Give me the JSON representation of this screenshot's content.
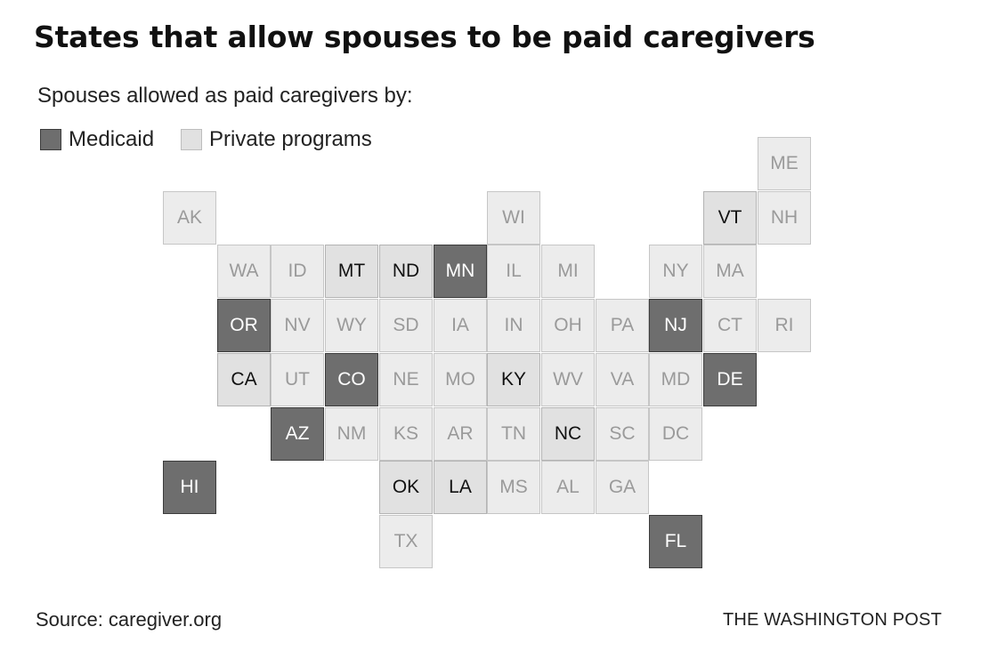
{
  "title": "States that allow spouses to be paid caregivers",
  "subtitle": "Spouses allowed as paid caregivers by:",
  "legend": [
    {
      "key": "medicaid",
      "label": "Medicaid"
    },
    {
      "key": "private",
      "label": "Private programs"
    }
  ],
  "colors": {
    "medicaid": "#6e6e6e",
    "private": "#e1e1e1",
    "none": "#ececec"
  },
  "map_data": {
    "type": "tile-grid",
    "states": [
      {
        "abbr": "ME",
        "col": 11,
        "row": 0,
        "status": "none"
      },
      {
        "abbr": "AK",
        "col": 0,
        "row": 1,
        "status": "none"
      },
      {
        "abbr": "WI",
        "col": 6,
        "row": 1,
        "status": "none"
      },
      {
        "abbr": "VT",
        "col": 10,
        "row": 1,
        "status": "private"
      },
      {
        "abbr": "NH",
        "col": 11,
        "row": 1,
        "status": "none"
      },
      {
        "abbr": "WA",
        "col": 1,
        "row": 2,
        "status": "none"
      },
      {
        "abbr": "ID",
        "col": 2,
        "row": 2,
        "status": "none"
      },
      {
        "abbr": "MT",
        "col": 3,
        "row": 2,
        "status": "private"
      },
      {
        "abbr": "ND",
        "col": 4,
        "row": 2,
        "status": "private"
      },
      {
        "abbr": "MN",
        "col": 5,
        "row": 2,
        "status": "medicaid"
      },
      {
        "abbr": "IL",
        "col": 6,
        "row": 2,
        "status": "none"
      },
      {
        "abbr": "MI",
        "col": 7,
        "row": 2,
        "status": "none"
      },
      {
        "abbr": "NY",
        "col": 9,
        "row": 2,
        "status": "none"
      },
      {
        "abbr": "MA",
        "col": 10,
        "row": 2,
        "status": "none"
      },
      {
        "abbr": "OR",
        "col": 1,
        "row": 3,
        "status": "medicaid"
      },
      {
        "abbr": "NV",
        "col": 2,
        "row": 3,
        "status": "none"
      },
      {
        "abbr": "WY",
        "col": 3,
        "row": 3,
        "status": "none"
      },
      {
        "abbr": "SD",
        "col": 4,
        "row": 3,
        "status": "none"
      },
      {
        "abbr": "IA",
        "col": 5,
        "row": 3,
        "status": "none"
      },
      {
        "abbr": "IN",
        "col": 6,
        "row": 3,
        "status": "none"
      },
      {
        "abbr": "OH",
        "col": 7,
        "row": 3,
        "status": "none"
      },
      {
        "abbr": "PA",
        "col": 8,
        "row": 3,
        "status": "none"
      },
      {
        "abbr": "NJ",
        "col": 9,
        "row": 3,
        "status": "medicaid"
      },
      {
        "abbr": "CT",
        "col": 10,
        "row": 3,
        "status": "none"
      },
      {
        "abbr": "RI",
        "col": 11,
        "row": 3,
        "status": "none"
      },
      {
        "abbr": "CA",
        "col": 1,
        "row": 4,
        "status": "private"
      },
      {
        "abbr": "UT",
        "col": 2,
        "row": 4,
        "status": "none"
      },
      {
        "abbr": "CO",
        "col": 3,
        "row": 4,
        "status": "medicaid"
      },
      {
        "abbr": "NE",
        "col": 4,
        "row": 4,
        "status": "none"
      },
      {
        "abbr": "MO",
        "col": 5,
        "row": 4,
        "status": "none"
      },
      {
        "abbr": "KY",
        "col": 6,
        "row": 4,
        "status": "private"
      },
      {
        "abbr": "WV",
        "col": 7,
        "row": 4,
        "status": "none"
      },
      {
        "abbr": "VA",
        "col": 8,
        "row": 4,
        "status": "none"
      },
      {
        "abbr": "MD",
        "col": 9,
        "row": 4,
        "status": "none"
      },
      {
        "abbr": "DE",
        "col": 10,
        "row": 4,
        "status": "medicaid"
      },
      {
        "abbr": "AZ",
        "col": 2,
        "row": 5,
        "status": "medicaid"
      },
      {
        "abbr": "NM",
        "col": 3,
        "row": 5,
        "status": "none"
      },
      {
        "abbr": "KS",
        "col": 4,
        "row": 5,
        "status": "none"
      },
      {
        "abbr": "AR",
        "col": 5,
        "row": 5,
        "status": "none"
      },
      {
        "abbr": "TN",
        "col": 6,
        "row": 5,
        "status": "none"
      },
      {
        "abbr": "NC",
        "col": 7,
        "row": 5,
        "status": "private"
      },
      {
        "abbr": "SC",
        "col": 8,
        "row": 5,
        "status": "none"
      },
      {
        "abbr": "DC",
        "col": 9,
        "row": 5,
        "status": "none"
      },
      {
        "abbr": "HI",
        "col": 0,
        "row": 6,
        "status": "medicaid"
      },
      {
        "abbr": "OK",
        "col": 4,
        "row": 6,
        "status": "private"
      },
      {
        "abbr": "LA",
        "col": 5,
        "row": 6,
        "status": "private"
      },
      {
        "abbr": "MS",
        "col": 6,
        "row": 6,
        "status": "none"
      },
      {
        "abbr": "AL",
        "col": 7,
        "row": 6,
        "status": "none"
      },
      {
        "abbr": "GA",
        "col": 8,
        "row": 6,
        "status": "none"
      },
      {
        "abbr": "TX",
        "col": 4,
        "row": 7,
        "status": "none"
      },
      {
        "abbr": "FL",
        "col": 9,
        "row": 7,
        "status": "medicaid"
      }
    ]
  },
  "source": "Source: caregiver.org",
  "credit": "THE WASHINGTON POST"
}
